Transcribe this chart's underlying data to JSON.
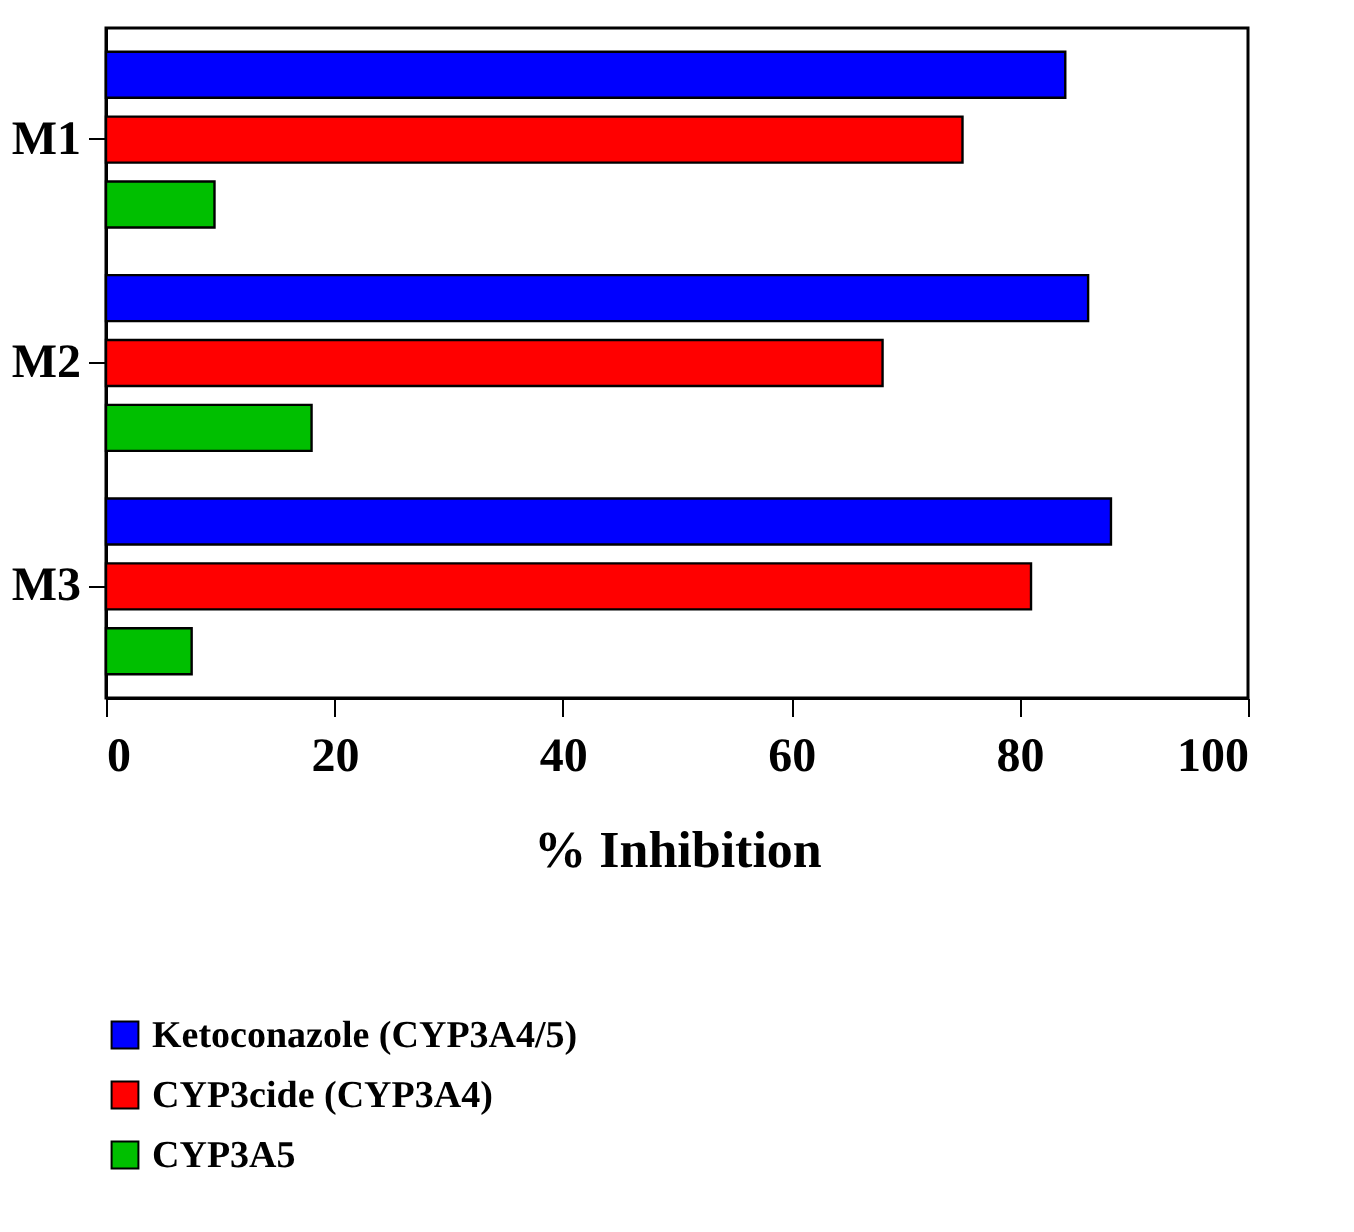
{
  "chart_data": {
    "type": "bar",
    "orientation": "horizontal",
    "xlabel": "% Inhibition",
    "categories": [
      "M1",
      "M2",
      "M3"
    ],
    "series": [
      {
        "name": "Ketoconazole (CYP3A4/5)",
        "color": "#0000ff",
        "values": [
          84,
          86,
          88
        ]
      },
      {
        "name": "CYP3cide (CYP3A4)",
        "color": "#ff0000",
        "values": [
          75,
          68,
          81
        ]
      },
      {
        "name": "CYP3A5",
        "color": "#00bf00",
        "values": [
          9.5,
          18,
          7.5
        ]
      }
    ],
    "xlim": [
      0,
      100
    ],
    "xticks": [
      0,
      20,
      40,
      60,
      80,
      100
    ],
    "grid": false,
    "legend": "bottom"
  }
}
